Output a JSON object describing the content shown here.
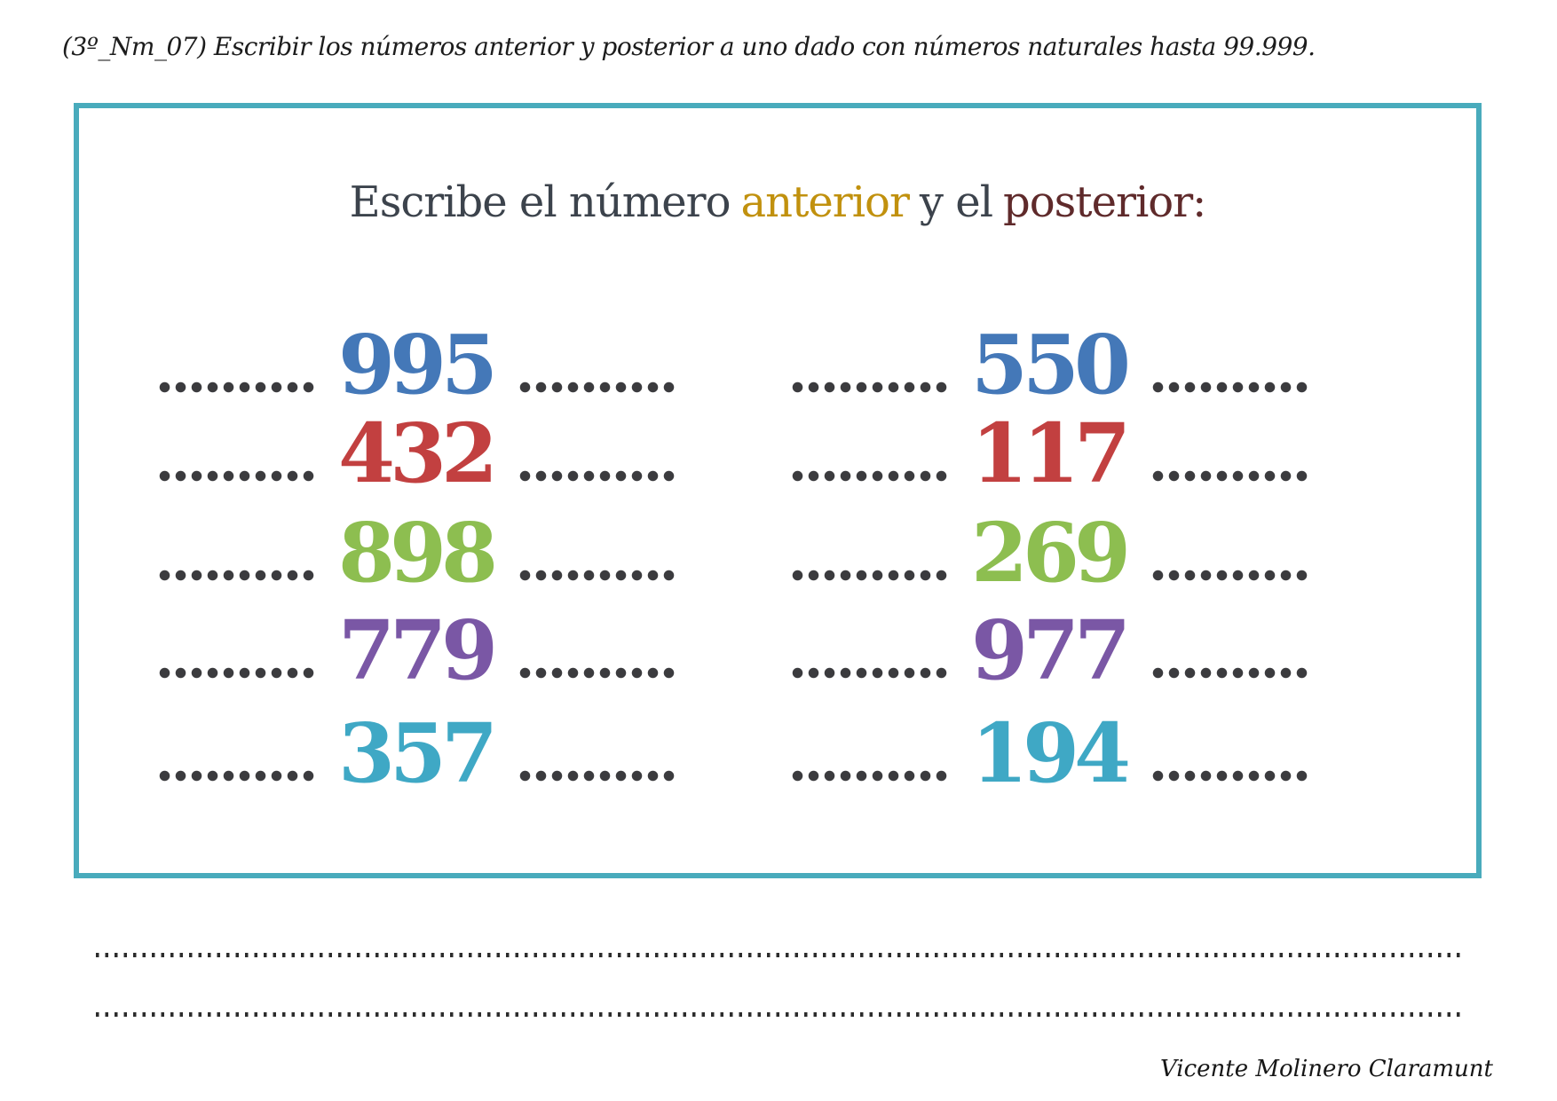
{
  "header": {
    "text": "(3º_Nm_07) Escribir los números anterior y posterior a uno dado con números naturales hasta 99.999."
  },
  "worksheet": {
    "box_border_color": "#49abbc",
    "dot_color": "#3b3b3e",
    "title": {
      "lead": "Escribe el número",
      "anterior": "anterior",
      "middle": "y el",
      "posterior": "posterior:",
      "lead_color": "#3c434c",
      "middle_color": "#3c434c",
      "anterior_color": "#c1910e",
      "posterior_color": "#5f2a2b"
    },
    "columns": [
      {
        "items": [
          {
            "value": "995",
            "color": "#4478b8"
          },
          {
            "value": "432",
            "color": "#c24040"
          },
          {
            "value": "898",
            "color": "#8dbe50"
          },
          {
            "value": "779",
            "color": "#7a57a5"
          },
          {
            "value": "357",
            "color": "#3fa8c5"
          }
        ]
      },
      {
        "items": [
          {
            "value": "550",
            "color": "#4478b8"
          },
          {
            "value": "117",
            "color": "#c24040"
          },
          {
            "value": "269",
            "color": "#8dbe50"
          },
          {
            "value": "977",
            "color": "#7a57a5"
          },
          {
            "value": "194",
            "color": "#3fa8c5"
          }
        ]
      }
    ]
  },
  "footer": {
    "signature": "Vicente Molinero Claramunt"
  }
}
